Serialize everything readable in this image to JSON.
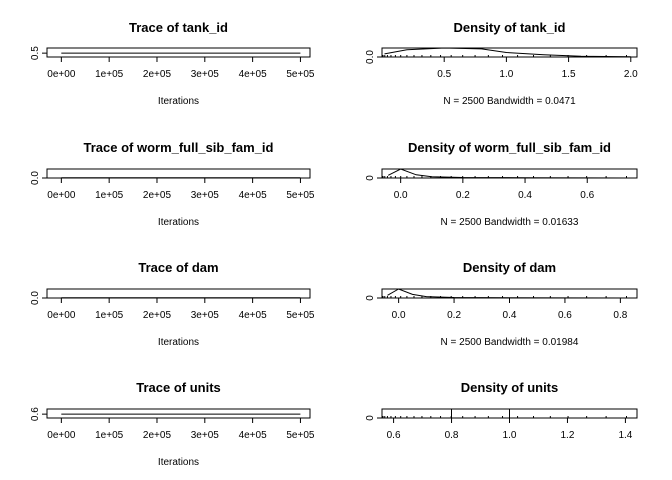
{
  "chart_data": [
    {
      "type": "line",
      "title": "Trace of tank_id",
      "xlabel": "Iterations",
      "x_ticks": [
        "0e+00",
        "1e+05",
        "2e+05",
        "3e+05",
        "4e+05",
        "5e+05"
      ],
      "x_tick_values": [
        0,
        100000,
        200000,
        300000,
        400000,
        500000
      ],
      "xlim": [
        -30000,
        520000
      ],
      "y_ticks": [
        "0.5"
      ],
      "y_tick_values": [
        0.5
      ],
      "ylim": [
        0.47,
        0.54
      ],
      "series": [
        {
          "x": [
            0,
            100000,
            200000,
            300000,
            400000,
            500000
          ],
          "y": [
            0.5,
            0.5,
            0.5,
            0.5,
            0.5,
            0.5
          ]
        }
      ]
    },
    {
      "type": "line",
      "title": "Density of tank_id",
      "xlabel": "N = 2500   Bandwidth = 0.0471",
      "x_ticks": [
        "0.5",
        "1.0",
        "1.5",
        "2.0"
      ],
      "x_tick_values": [
        0.5,
        1.0,
        1.5,
        2.0
      ],
      "xlim": [
        0.0,
        2.05
      ],
      "y_ticks": [
        "0.0"
      ],
      "y_tick_values": [
        0.0
      ],
      "ylim": [
        0.0,
        1.0
      ],
      "series": [
        {
          "x": [
            0.02,
            0.2,
            0.5,
            0.8,
            1.0,
            1.3,
            1.6,
            2.0
          ],
          "y": [
            0.35,
            0.8,
            1.0,
            0.9,
            0.5,
            0.25,
            0.08,
            0.02
          ]
        }
      ]
    },
    {
      "type": "line",
      "title": "Trace of worm_full_sib_fam_id",
      "xlabel": "Iterations",
      "x_ticks": [
        "0e+00",
        "1e+05",
        "2e+05",
        "3e+05",
        "4e+05",
        "5e+05"
      ],
      "x_tick_values": [
        0,
        100000,
        200000,
        300000,
        400000,
        500000
      ],
      "xlim": [
        -30000,
        520000
      ],
      "y_ticks": [
        "0.0"
      ],
      "y_tick_values": [
        0.0
      ],
      "ylim": [
        0.0,
        0.8
      ],
      "series": [
        {
          "x": [
            0,
            100000,
            200000,
            300000,
            400000,
            500000
          ],
          "y": [
            0.02,
            0.02,
            0.02,
            0.02,
            0.02,
            0.02
          ]
        }
      ]
    },
    {
      "type": "line",
      "title": "Density of worm_full_sib_fam_id",
      "xlabel": "N = 2500   Bandwidth = 0.01633",
      "x_ticks": [
        "0.0",
        "0.2",
        "0.4",
        "0.6"
      ],
      "x_tick_values": [
        0.0,
        0.2,
        0.4,
        0.6
      ],
      "xlim": [
        -0.06,
        0.76
      ],
      "y_ticks": [
        "0"
      ],
      "y_tick_values": [
        0
      ],
      "ylim": [
        0,
        1.0
      ],
      "series": [
        {
          "x": [
            -0.04,
            0.0,
            0.05,
            0.1,
            0.2,
            0.4,
            0.6,
            0.74
          ],
          "y": [
            0.3,
            1.0,
            0.35,
            0.15,
            0.06,
            0.03,
            0.01,
            0.0
          ]
        }
      ]
    },
    {
      "type": "line",
      "title": "Trace of dam",
      "xlabel": "Iterations",
      "x_ticks": [
        "0e+00",
        "1e+05",
        "2e+05",
        "3e+05",
        "4e+05",
        "5e+05"
      ],
      "x_tick_values": [
        0,
        100000,
        200000,
        300000,
        400000,
        500000
      ],
      "xlim": [
        -30000,
        520000
      ],
      "y_ticks": [
        "0.0"
      ],
      "y_tick_values": [
        0.0
      ],
      "ylim": [
        0.0,
        0.8
      ],
      "series": [
        {
          "x": [
            0,
            100000,
            200000,
            300000,
            400000,
            500000
          ],
          "y": [
            0.03,
            0.03,
            0.03,
            0.03,
            0.03,
            0.03
          ]
        }
      ]
    },
    {
      "type": "line",
      "title": "Density of dam",
      "xlabel": "N = 2500   Bandwidth = 0.01984",
      "x_ticks": [
        "0.0",
        "0.2",
        "0.4",
        "0.6",
        "0.8"
      ],
      "x_tick_values": [
        0.0,
        0.2,
        0.4,
        0.6,
        0.8
      ],
      "xlim": [
        -0.06,
        0.86
      ],
      "y_ticks": [
        "0"
      ],
      "y_tick_values": [
        0
      ],
      "ylim": [
        0,
        1.0
      ],
      "series": [
        {
          "x": [
            -0.04,
            0.0,
            0.05,
            0.1,
            0.2,
            0.4,
            0.6,
            0.84
          ],
          "y": [
            0.3,
            1.0,
            0.4,
            0.15,
            0.06,
            0.03,
            0.01,
            0.0
          ]
        }
      ]
    },
    {
      "type": "line",
      "title": "Trace of units",
      "xlabel": "Iterations",
      "x_ticks": [
        "0e+00",
        "1e+05",
        "2e+05",
        "3e+05",
        "4e+05",
        "5e+05"
      ],
      "x_tick_values": [
        0,
        100000,
        200000,
        300000,
        400000,
        500000
      ],
      "xlim": [
        -30000,
        520000
      ],
      "y_ticks": [
        "0.6"
      ],
      "y_tick_values": [
        0.6
      ],
      "ylim": [
        0.57,
        0.64
      ],
      "series": [
        {
          "x": [
            0,
            500000
          ],
          "y": [
            0.6,
            0.6
          ]
        }
      ]
    },
    {
      "type": "line",
      "title": "Density of units",
      "xlabel": "",
      "x_ticks": [
        "0.6",
        "0.8",
        "1.0",
        "1.2",
        "1.4"
      ],
      "x_tick_values": [
        0.6,
        0.8,
        1.0,
        1.2,
        1.4
      ],
      "xlim": [
        0.56,
        1.44
      ],
      "y_ticks": [
        "0"
      ],
      "y_tick_values": [
        0
      ],
      "ylim": [
        0,
        1.0
      ],
      "series": [
        {
          "x": [
            0.8,
            0.8,
            1.0,
            1.0
          ],
          "y": [
            0,
            1,
            1,
            0
          ]
        }
      ]
    }
  ]
}
